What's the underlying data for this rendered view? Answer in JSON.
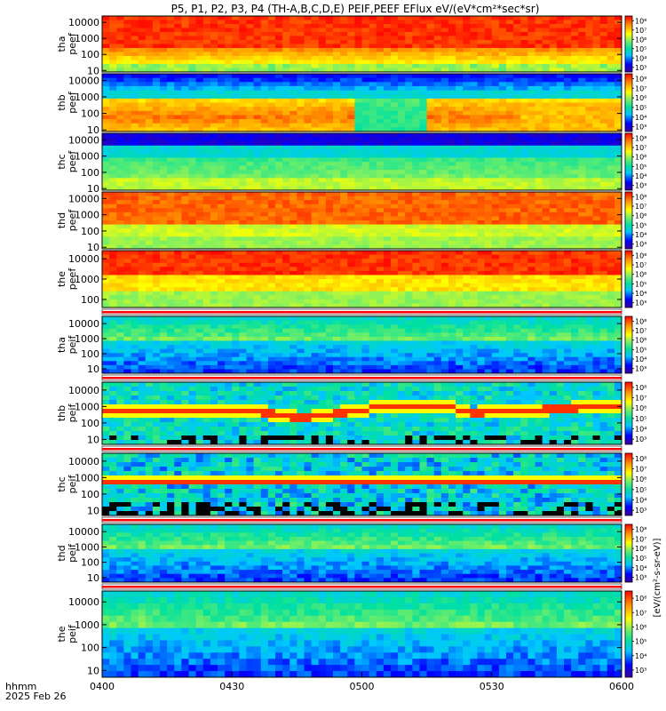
{
  "chart_data": {
    "type": "heatmap",
    "title": "P5, P1, P2, P3, P4 (TH-A,B,C,D,E) PEIF,PEEF EFlux eV/(eV*cm²*sec*sr)",
    "time_label": "hhmm",
    "date_label": "2025 Feb 26",
    "x_ticks": [
      "0400",
      "0430",
      "0500",
      "0530",
      "0600"
    ],
    "x_range": [
      "04:00",
      "06:00"
    ],
    "y_scale": "log",
    "y_units": "eV",
    "colorbar_label": "[eV/(cm²-s-sr-eV)]",
    "colormap": [
      "#3a00a0",
      "#0000ff",
      "#00c8ff",
      "#00e0a0",
      "#80f060",
      "#ffff00",
      "#ff9000",
      "#ff0000"
    ],
    "panels": [
      {
        "label_top": "tha",
        "label_bottom": "peef",
        "kind": "electron",
        "y_ticks": [
          "10",
          "100",
          "1000",
          "10000"
        ],
        "ylim": [
          8,
          25000
        ],
        "cbar_ticks": [
          "10³",
          "10⁴",
          "10⁵",
          "10⁶",
          "10⁷",
          "10⁸"
        ]
      },
      {
        "label_top": "thb",
        "label_bottom": "peef",
        "kind": "electron",
        "y_ticks": [
          "10",
          "100",
          "1000",
          "10000"
        ],
        "ylim": [
          8,
          25000
        ],
        "cbar_ticks": [
          "10³",
          "10⁴",
          "10⁵",
          "10⁶",
          "10⁷",
          "10⁸"
        ]
      },
      {
        "label_top": "thc",
        "label_bottom": "peef",
        "kind": "electron",
        "y_ticks": [
          "10",
          "100",
          "1000",
          "10000"
        ],
        "ylim": [
          8,
          25000
        ],
        "cbar_ticks": [
          "10³",
          "10⁴",
          "10⁵",
          "10⁶",
          "10⁷",
          "10⁸"
        ]
      },
      {
        "label_top": "thd",
        "label_bottom": "peef",
        "kind": "electron",
        "y_ticks": [
          "10",
          "100",
          "1000",
          "10000"
        ],
        "ylim": [
          8,
          25000
        ],
        "cbar_ticks": [
          "10³",
          "10⁴",
          "10⁵",
          "10⁶",
          "10⁷",
          "10⁸"
        ]
      },
      {
        "label_top": "the",
        "label_bottom": "peef",
        "kind": "electron",
        "y_ticks": [
          "100",
          "1000",
          "10000"
        ],
        "ylim": [
          40,
          25000
        ],
        "cbar_ticks": [
          "10³",
          "10⁴",
          "10⁵",
          "10⁶",
          "10⁷",
          "10⁸"
        ]
      },
      {
        "label_top": "tha",
        "label_bottom": "peif",
        "kind": "ion",
        "y_ticks": [
          "10",
          "100",
          "1000",
          "10000"
        ],
        "ylim": [
          5,
          30000
        ],
        "cbar_ticks": [
          "10³",
          "10⁴",
          "10⁵",
          "10⁶",
          "10⁷",
          "10⁸"
        ]
      },
      {
        "label_top": "thb",
        "label_bottom": "peif",
        "kind": "ion",
        "y_ticks": [
          "10",
          "100",
          "1000",
          "10000"
        ],
        "ylim": [
          5,
          30000
        ],
        "cbar_ticks": [
          "10³",
          "10⁴",
          "10⁵",
          "10⁶",
          "10⁷",
          "10⁸"
        ]
      },
      {
        "label_top": "thc",
        "label_bottom": "peif",
        "kind": "ion",
        "y_ticks": [
          "10",
          "100",
          "1000",
          "10000"
        ],
        "ylim": [
          5,
          30000
        ],
        "cbar_ticks": [
          "10³",
          "10⁴",
          "10⁵",
          "10⁶",
          "10⁷",
          "10⁸"
        ]
      },
      {
        "label_top": "thd",
        "label_bottom": "peif",
        "kind": "ion",
        "y_ticks": [
          "10",
          "100",
          "1000",
          "10000"
        ],
        "ylim": [
          5,
          30000
        ],
        "cbar_ticks": [
          "10³",
          "10⁴",
          "10⁵",
          "10⁶",
          "10⁷",
          "10⁸"
        ]
      },
      {
        "label_top": "the",
        "label_bottom": "peif",
        "kind": "ion",
        "y_ticks": [
          "10",
          "100",
          "1000",
          "10000"
        ],
        "ylim": [
          5,
          30000
        ],
        "cbar_ticks": [
          "10³",
          "10⁴",
          "10⁵",
          "10⁶",
          "10⁷",
          "10⁸"
        ]
      }
    ]
  }
}
